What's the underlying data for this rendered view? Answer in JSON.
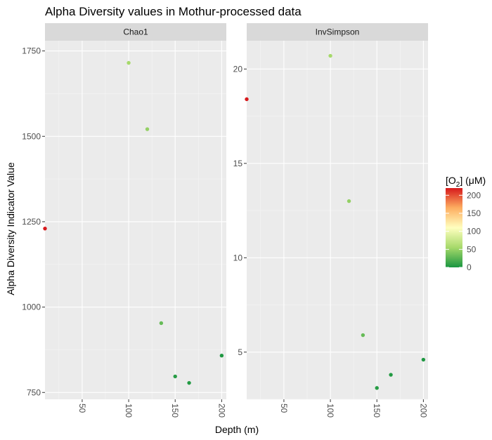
{
  "chart_data": {
    "type": "scatter",
    "title": "Alpha Diversity values in Mothur-processed data",
    "xlabel": "Depth (m)",
    "ylabel": "Alpha Diversity Indicator Value",
    "x_ticks": [
      "50",
      "100",
      "150",
      "200"
    ],
    "legend": {
      "title_prefix": "[O",
      "title_subscript": "2",
      "title_suffix": "] (μM)",
      "ticks": [
        "200",
        "150",
        "100",
        "50",
        "0"
      ],
      "placement": "right",
      "colors": [
        "#1a9641",
        "#a6d96a",
        "#ffffbf",
        "#fdae61",
        "#d7191c"
      ],
      "range": [
        0,
        220
      ]
    },
    "grid": true,
    "panels": [
      {
        "strip": "Chao1",
        "xlim": [
          10,
          205
        ],
        "ylim": [
          730,
          1780
        ],
        "y_ticks": [
          "750",
          "1000",
          "1250",
          "1500",
          "1750"
        ],
        "points": [
          {
            "x": 10,
            "y": 1230,
            "o2": 225
          },
          {
            "x": 100,
            "y": 1715,
            "o2": 55
          },
          {
            "x": 120,
            "y": 1521,
            "o2": 48
          },
          {
            "x": 135,
            "y": 953,
            "o2": 30
          },
          {
            "x": 150,
            "y": 797,
            "o2": 5
          },
          {
            "x": 165,
            "y": 778,
            "o2": 3
          },
          {
            "x": 200,
            "y": 858,
            "o2": 2
          }
        ]
      },
      {
        "strip": "InvSimpson",
        "xlim": [
          10,
          205
        ],
        "ylim": [
          2.5,
          21.5
        ],
        "y_ticks": [
          "5",
          "10",
          "15",
          "20"
        ],
        "points": [
          {
            "x": 10,
            "y": 18.4,
            "o2": 225
          },
          {
            "x": 100,
            "y": 20.7,
            "o2": 55
          },
          {
            "x": 120,
            "y": 13.0,
            "o2": 48
          },
          {
            "x": 135,
            "y": 5.9,
            "o2": 30
          },
          {
            "x": 150,
            "y": 3.1,
            "o2": 5
          },
          {
            "x": 165,
            "y": 3.8,
            "o2": 3
          },
          {
            "x": 200,
            "y": 4.6,
            "o2": 2
          }
        ]
      }
    ]
  }
}
